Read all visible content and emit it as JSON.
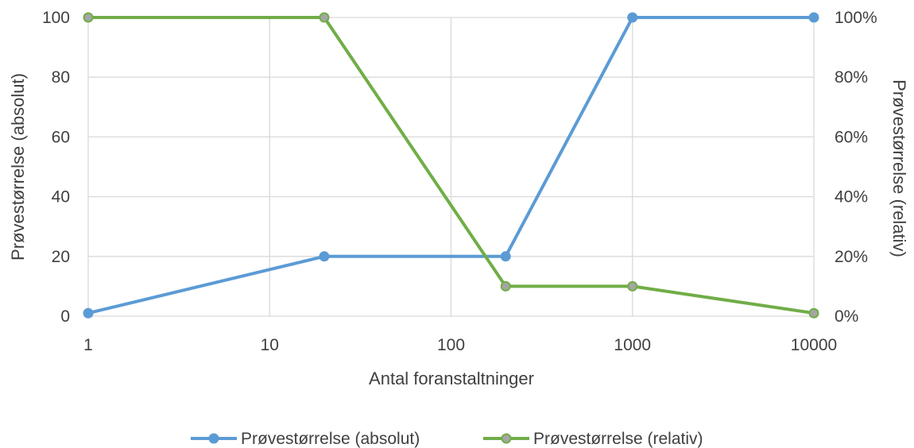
{
  "chart_data": {
    "type": "line",
    "xlabel": "Antal foranstaltninger",
    "ylabel_left": "Prøvestørrelse (absolut)",
    "ylabel_right": "Prøvestørrelse (relativ)",
    "x_scale": "log",
    "xlim": [
      1,
      10000
    ],
    "x_ticks": [
      "1",
      "10",
      "100",
      "1000",
      "10000"
    ],
    "ylim_left": [
      0,
      100
    ],
    "y_ticks_left": [
      "0",
      "20",
      "40",
      "60",
      "80",
      "100"
    ],
    "ylim_right": [
      0,
      1
    ],
    "y_ticks_right": [
      "0%",
      "20%",
      "40%",
      "60%",
      "80%",
      "100%"
    ],
    "grid": true,
    "legend_position": "bottom",
    "series": [
      {
        "name": "Prøvestørrelse (absolut)",
        "axis": "left",
        "color": "#5b9bd5",
        "x": [
          1,
          20,
          200,
          1000,
          10000
        ],
        "values": [
          1,
          20,
          20,
          100,
          100
        ]
      },
      {
        "name": "Prøvestørrelse (relativ)",
        "axis": "right",
        "color": "#70ad47",
        "marker_fill": "#a5a5a5",
        "x": [
          1,
          20,
          200,
          1000,
          10000
        ],
        "values": [
          1.0,
          1.0,
          0.1,
          0.1,
          0.01
        ]
      }
    ]
  }
}
